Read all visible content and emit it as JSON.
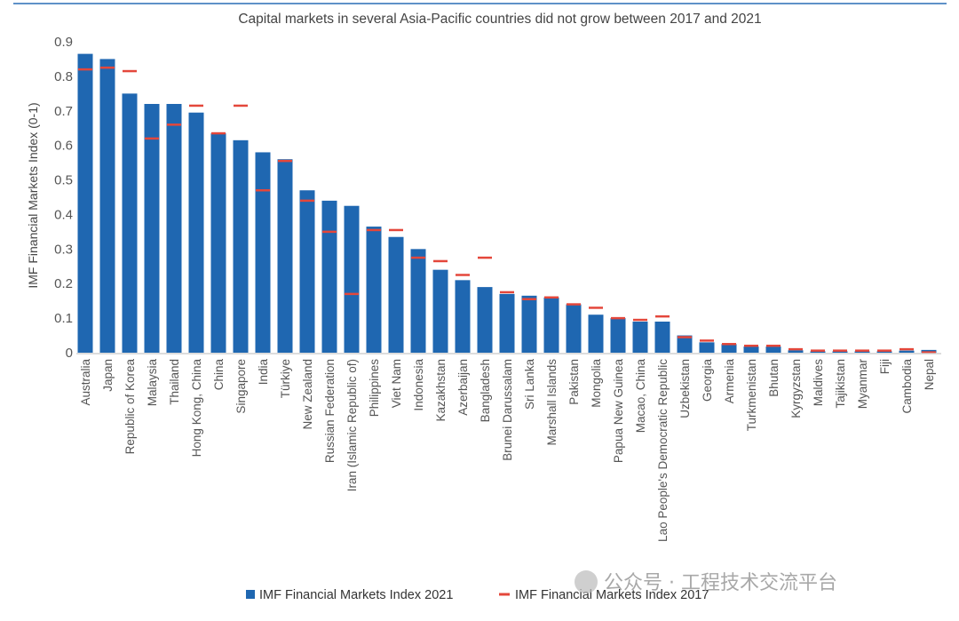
{
  "chart_data": {
    "type": "bar",
    "title": "Capital markets in several Asia-Pacific countries did not grow between 2017 and 2021",
    "xlabel": "",
    "ylabel": "IMF Financial Markets Index  (0-1)",
    "ylim": [
      0,
      0.9
    ],
    "yticks": [
      "0",
      "0.1",
      "0.2",
      "0.3",
      "0.4",
      "0.5",
      "0.6",
      "0.7",
      "0.8",
      "0.9"
    ],
    "grid": false,
    "legend_position": "bottom",
    "categories": [
      "Australia",
      "Japan",
      "Republic of Korea",
      "Malaysia",
      "Thailand",
      "Hong Kong, China",
      "China",
      "Singapore",
      "India",
      "Türkiye",
      "New Zealand",
      "Russian Federation",
      "Iran (Islamic Republic of)",
      "Philippines",
      "Viet Nam",
      "Indonesia",
      "Kazakhstan",
      "Azerbaijan",
      "Bangladesh",
      "Brunei Darussalam",
      "Sri Lanka",
      "Marshall Islands",
      "Pakistan",
      "Mongolia",
      "Papua New Guinea",
      "Macao, China",
      "Lao People's Democratic Republic",
      "Uzbekistan",
      "Georgia",
      "Armenia",
      "Turkmenistan",
      "Bhutan",
      "Kyrgyzstan",
      "Maldives",
      "Tajikistan",
      "Myanmar",
      "Fiji",
      "Cambodia",
      "Nepal"
    ],
    "series": [
      {
        "name": "IMF Financial Markets Index 2021",
        "style": "bar",
        "color": "#1f67b1",
        "values": [
          0.865,
          0.85,
          0.75,
          0.72,
          0.72,
          0.695,
          0.635,
          0.615,
          0.58,
          0.56,
          0.47,
          0.44,
          0.425,
          0.365,
          0.335,
          0.3,
          0.24,
          0.21,
          0.19,
          0.17,
          0.165,
          0.16,
          0.14,
          0.11,
          0.1,
          0.09,
          0.09,
          0.05,
          0.03,
          0.025,
          0.018,
          0.018,
          0.007,
          0.004,
          0.004,
          0.004,
          0.004,
          0.006,
          0.008
        ]
      },
      {
        "name": "IMF Financial Markets Index 2017",
        "style": "dash-marker",
        "color": "#e4473b",
        "values": [
          0.82,
          0.825,
          0.815,
          0.62,
          0.66,
          0.715,
          0.635,
          0.715,
          0.47,
          0.555,
          0.44,
          0.35,
          0.17,
          0.355,
          0.355,
          0.275,
          0.265,
          0.225,
          0.275,
          0.175,
          0.155,
          0.16,
          0.14,
          0.13,
          0.1,
          0.095,
          0.105,
          0.045,
          0.035,
          0.025,
          0.02,
          0.02,
          0.01,
          0.006,
          0.006,
          0.006,
          0.006,
          0.01,
          0.001
        ]
      }
    ]
  },
  "watermark": "公众号 · 工程技术交流平台"
}
